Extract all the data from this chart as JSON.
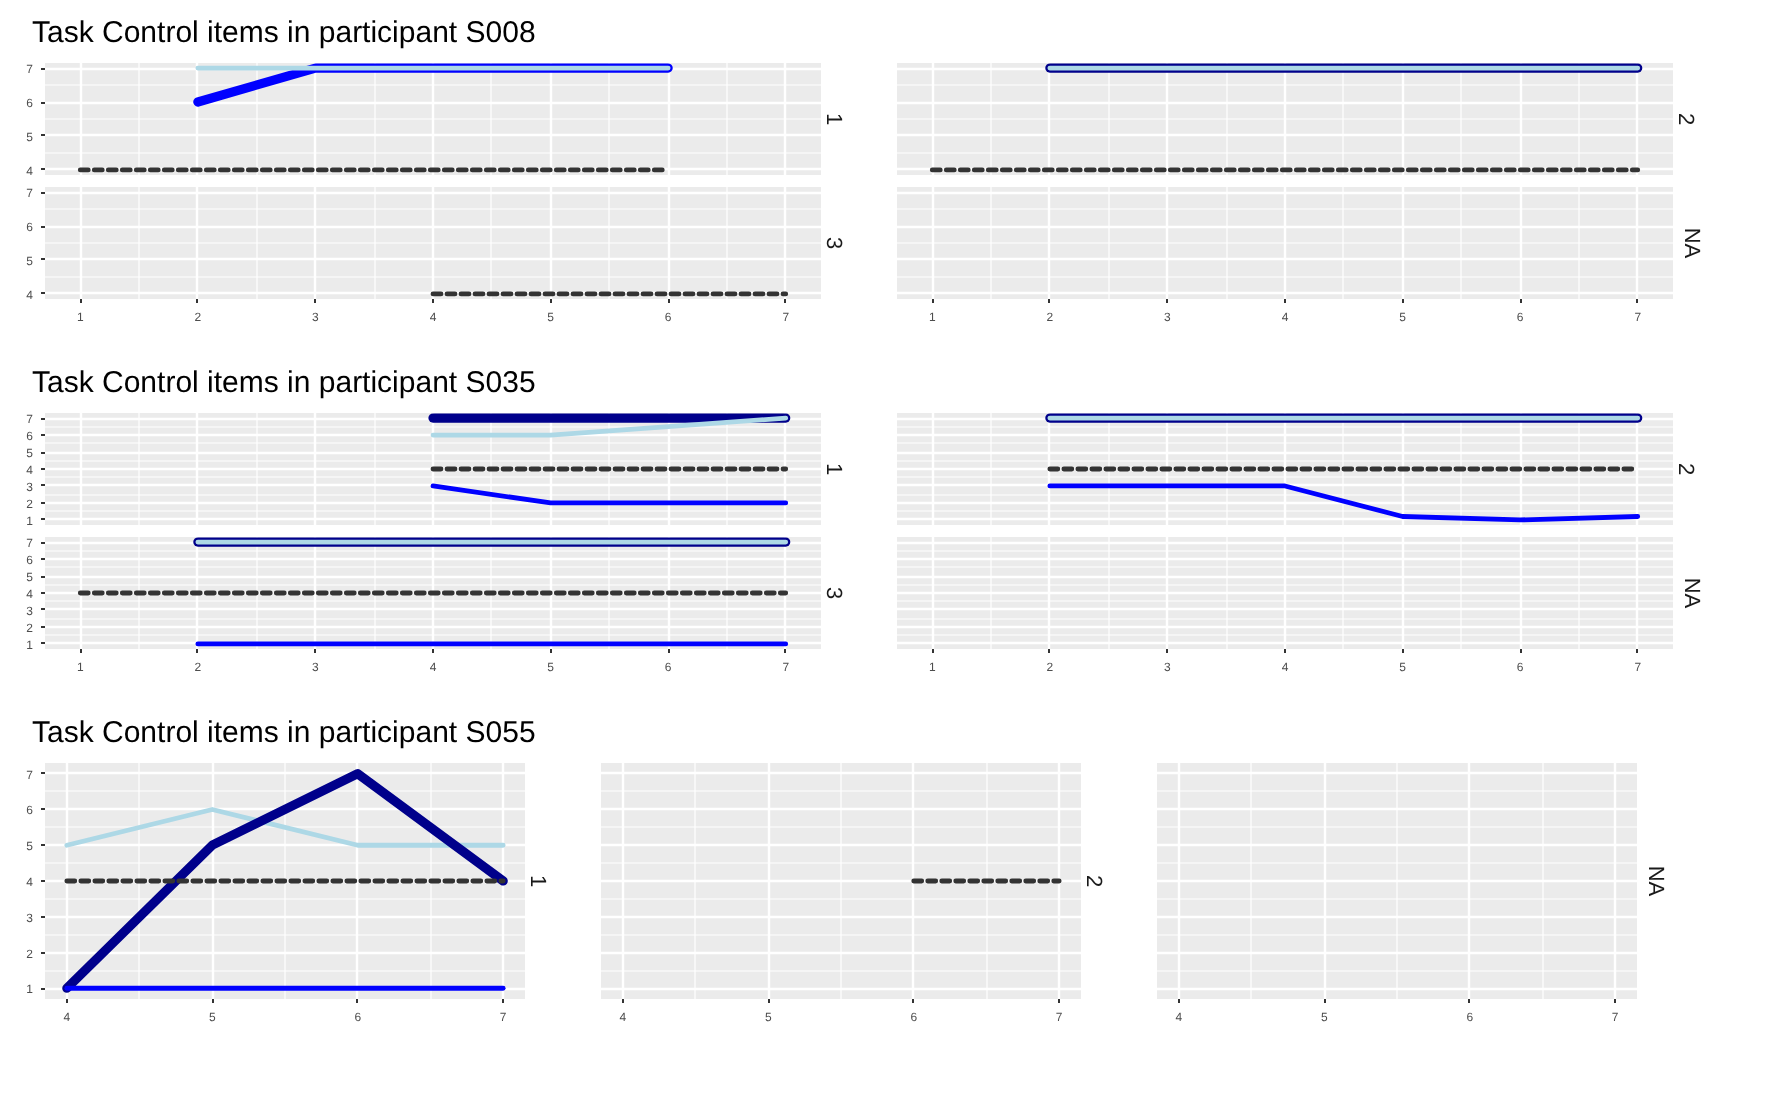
{
  "chart_data": [
    {
      "type": "line",
      "title": "Task Control items in participant S008",
      "subtitle": "1",
      "xlim": [
        0.7,
        7.3
      ],
      "ylim": [
        3.85,
        7.15
      ],
      "xticks": [
        1,
        2,
        3,
        4,
        5,
        6,
        7
      ],
      "yticks": [
        4,
        5,
        6,
        7
      ],
      "grid": true,
      "tick_labels": "y",
      "series": [
        {
          "color": "#0000ff",
          "x": [
            2,
            3,
            4,
            5,
            6
          ],
          "values": [
            6,
            7,
            7,
            7,
            7
          ]
        },
        {
          "color": "#add8e6",
          "x": [
            2,
            3,
            4,
            5,
            6
          ],
          "values": [
            7,
            7,
            7,
            7,
            7
          ]
        },
        {
          "color": "#333333",
          "line_style": "dashed",
          "x": [
            1,
            2,
            3,
            4,
            5,
            6
          ],
          "values": [
            4,
            4,
            4,
            4,
            4,
            4
          ]
        }
      ]
    },
    {
      "type": "line",
      "subtitle": "2",
      "xlim": [
        0.7,
        7.3
      ],
      "ylim": [
        3.85,
        7.15
      ],
      "xticks": [
        1,
        2,
        3,
        4,
        5,
        6,
        7
      ],
      "yticks": [
        4,
        5,
        6,
        7
      ],
      "grid": true,
      "tick_labels": false,
      "series": [
        {
          "color": "#00008b",
          "x": [
            2,
            3,
            4,
            5,
            6,
            7
          ],
          "values": [
            7,
            7,
            7,
            7,
            7,
            7
          ]
        },
        {
          "color": "#add8e6",
          "x": [
            2,
            3,
            4,
            5,
            6,
            7
          ],
          "values": [
            7,
            7,
            7,
            7,
            7,
            7
          ]
        },
        {
          "color": "#333333",
          "line_style": "dashed",
          "x": [
            1,
            2,
            3,
            4,
            5,
            6,
            7
          ],
          "values": [
            4,
            4,
            4,
            4,
            4,
            4,
            4
          ]
        }
      ]
    },
    {
      "type": "line",
      "subtitle": "3",
      "xlim": [
        0.7,
        7.3
      ],
      "ylim": [
        3.85,
        7.15
      ],
      "xticks": [
        1,
        2,
        3,
        4,
        5,
        6,
        7
      ],
      "yticks": [
        4,
        5,
        6,
        7
      ],
      "grid": true,
      "series": [
        {
          "color": "#333333",
          "line_style": "dashed",
          "x": [
            4,
            5,
            6,
            7
          ],
          "values": [
            4,
            4,
            4,
            4
          ]
        }
      ]
    },
    {
      "type": "line",
      "subtitle": "NA",
      "xlim": [
        0.7,
        7.3
      ],
      "ylim": [
        3.85,
        7.15
      ],
      "xticks": [
        1,
        2,
        3,
        4,
        5,
        6,
        7
      ],
      "yticks": [
        4,
        5,
        6,
        7
      ],
      "grid": true,
      "tick_labels": "x"
    },
    {
      "type": "line",
      "title": "Task Control items in participant S035",
      "subtitle": "1",
      "xlim": [
        0.7,
        7.3
      ],
      "ylim": [
        0.7,
        7.3
      ],
      "xticks": [
        1,
        2,
        3,
        4,
        5,
        6,
        7
      ],
      "yticks": [
        1,
        2,
        3,
        4,
        5,
        6,
        7
      ],
      "grid": true,
      "tick_labels": "y",
      "series": [
        {
          "color": "#00008b",
          "x": [
            4,
            5,
            6,
            7
          ],
          "values": [
            7,
            7,
            7,
            7
          ]
        },
        {
          "color": "#add8e6",
          "x": [
            4,
            5,
            6,
            7
          ],
          "values": [
            6,
            6,
            6.5,
            7
          ]
        },
        {
          "color": "#0000ff",
          "x": [
            4,
            5,
            6,
            7
          ],
          "values": [
            3,
            2,
            2,
            2
          ]
        },
        {
          "color": "#333333",
          "line_style": "dashed",
          "x": [
            4,
            5,
            6,
            7
          ],
          "values": [
            4,
            4,
            4,
            4
          ]
        }
      ]
    },
    {
      "type": "line",
      "subtitle": "2",
      "xlim": [
        0.7,
        7.3
      ],
      "ylim": [
        0.7,
        7.3
      ],
      "xticks": [
        1,
        2,
        3,
        4,
        5,
        6,
        7
      ],
      "yticks": [
        1,
        2,
        3,
        4,
        5,
        6,
        7
      ],
      "grid": true,
      "tick_labels": false,
      "series": [
        {
          "color": "#00008b",
          "x": [
            2,
            3,
            4,
            5,
            6,
            7
          ],
          "values": [
            7,
            7,
            7,
            7,
            7,
            7
          ]
        },
        {
          "color": "#add8e6",
          "x": [
            2,
            3,
            4,
            5,
            6,
            7
          ],
          "values": [
            7,
            7,
            7,
            7,
            7,
            7
          ]
        },
        {
          "color": "#0000ff",
          "x": [
            2,
            3,
            4,
            5,
            6,
            7
          ],
          "values": [
            3,
            3,
            3,
            1.2,
            1,
            1.2
          ]
        },
        {
          "color": "#333333",
          "line_style": "dashed",
          "x": [
            2,
            3,
            4,
            5,
            6,
            7
          ],
          "values": [
            4,
            4,
            4,
            4,
            4,
            4
          ]
        }
      ]
    },
    {
      "type": "line",
      "subtitle": "3",
      "xlim": [
        0.7,
        7.3
      ],
      "ylim": [
        0.7,
        7.3
      ],
      "xticks": [
        1,
        2,
        3,
        4,
        5,
        6,
        7
      ],
      "yticks": [
        1,
        2,
        3,
        4,
        5,
        6,
        7
      ],
      "grid": true,
      "series": [
        {
          "color": "#00008b",
          "x": [
            2,
            3,
            4,
            5,
            6,
            7
          ],
          "values": [
            7,
            7,
            7,
            7,
            7,
            7
          ]
        },
        {
          "color": "#add8e6",
          "x": [
            2,
            3,
            4,
            5,
            6,
            7
          ],
          "values": [
            7,
            7,
            7,
            7,
            7,
            7
          ]
        },
        {
          "color": "#0000ff",
          "x": [
            2,
            3,
            4,
            5,
            6,
            7
          ],
          "values": [
            1,
            1,
            1,
            1,
            1,
            1
          ]
        },
        {
          "color": "#333333",
          "line_style": "dashed",
          "x": [
            1,
            2,
            3,
            4,
            5,
            6,
            7
          ],
          "values": [
            4,
            4,
            4,
            4,
            4,
            4,
            4
          ]
        }
      ]
    },
    {
      "type": "line",
      "subtitle": "NA",
      "xlim": [
        0.7,
        7.3
      ],
      "ylim": [
        0.7,
        7.3
      ],
      "xticks": [
        1,
        2,
        3,
        4,
        5,
        6,
        7
      ],
      "yticks": [
        1,
        2,
        3,
        4,
        5,
        6,
        7
      ],
      "grid": true,
      "tick_labels": "x"
    },
    {
      "type": "line",
      "title": "Task Control items in participant S055",
      "subtitle": "1",
      "xlim": [
        3.85,
        7.15
      ],
      "ylim": [
        0.7,
        7.3
      ],
      "xticks": [
        4,
        5,
        6,
        7
      ],
      "yticks": [
        1,
        2,
        3,
        4,
        5,
        6,
        7
      ],
      "grid": true,
      "series": [
        {
          "color": "#add8e6",
          "x": [
            4,
            5,
            6,
            7
          ],
          "values": [
            5,
            6,
            5,
            5
          ]
        },
        {
          "color": "#00008b",
          "x": [
            4,
            5,
            6,
            7
          ],
          "values": [
            1,
            5,
            7,
            4
          ]
        },
        {
          "color": "#0000ff",
          "x": [
            4,
            5,
            6,
            7
          ],
          "values": [
            1,
            1,
            1,
            1
          ]
        },
        {
          "color": "#333333",
          "line_style": "dashed",
          "x": [
            4,
            5,
            6,
            7
          ],
          "values": [
            4,
            4,
            4,
            4
          ]
        }
      ]
    },
    {
      "type": "line",
      "subtitle": "2",
      "xlim": [
        3.85,
        7.15
      ],
      "ylim": [
        0.7,
        7.3
      ],
      "xticks": [
        4,
        5,
        6,
        7
      ],
      "yticks": [
        1,
        2,
        3,
        4,
        5,
        6,
        7
      ],
      "grid": true,
      "tick_labels": "x",
      "series": [
        {
          "color": "#333333",
          "line_style": "dashed",
          "x": [
            6,
            7
          ],
          "values": [
            4,
            4
          ]
        }
      ]
    },
    {
      "type": "line",
      "subtitle": "NA",
      "xlim": [
        3.85,
        7.15
      ],
      "ylim": [
        0.7,
        7.3
      ],
      "xticks": [
        4,
        5,
        6,
        7
      ],
      "yticks": [
        1,
        2,
        3,
        4,
        5,
        6,
        7
      ],
      "grid": true,
      "tick_labels": "x"
    }
  ]
}
